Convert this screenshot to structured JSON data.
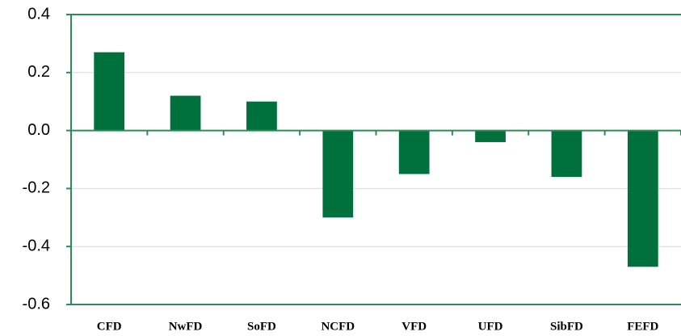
{
  "chart_data": {
    "type": "bar",
    "categories": [
      "CFD",
      "NwFD",
      "SoFD",
      "NCFD",
      "VFD",
      "UFD",
      "SibFD",
      "FEFD"
    ],
    "values": [
      0.27,
      0.12,
      0.1,
      -0.3,
      -0.15,
      -0.04,
      -0.16,
      -0.47
    ],
    "color": "#00703c",
    "ylim": [
      -0.6,
      0.4
    ],
    "yticks": [
      -0.6,
      -0.4,
      -0.2,
      {
        "value": 0,
        "label": "0.0"
      },
      0.2,
      0.4
    ],
    "grid": true
  }
}
